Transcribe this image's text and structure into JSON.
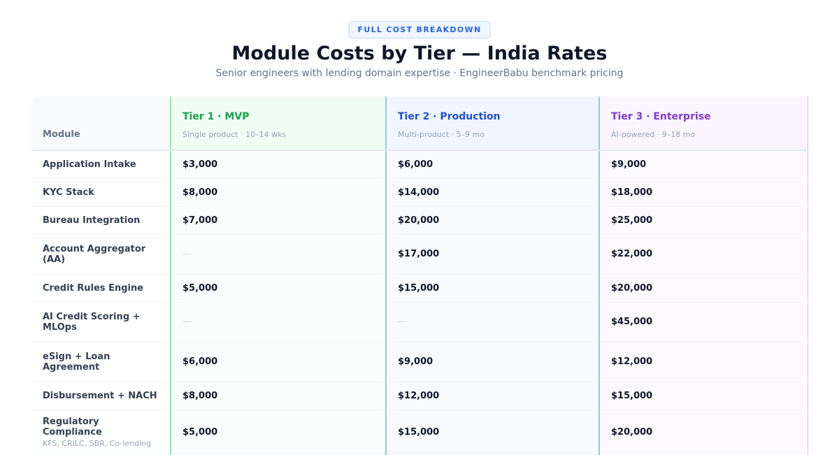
{
  "header": {
    "badge": "FULL COST BREAKDOWN",
    "title": "Module Costs by Tier — India Rates",
    "subtitle": "Senior engineers with lending domain expertise · EngineerBabu benchmark pricing"
  },
  "table": {
    "module_header": "Module",
    "tiers": [
      {
        "name": "Tier 1 · MVP",
        "sub": "Single product · 10–14 wks",
        "color": "#16a34a"
      },
      {
        "name": "Tier 2 · Production",
        "sub": "Multi-product · 5–9 mo",
        "color": "#1d4ed8"
      },
      {
        "name": "Tier 3 · Enterprise",
        "sub": "AI-powered · 9–18 mo",
        "color": "#7e3ad6"
      }
    ],
    "rows": [
      {
        "module": "Application Intake",
        "cells": [
          "$3,000",
          "$6,000",
          "$9,000"
        ]
      },
      {
        "module": "KYC Stack",
        "cells": [
          "$8,000",
          "$14,000",
          "$18,000"
        ]
      },
      {
        "module": "Bureau Integration",
        "cells": [
          "$7,000",
          "$20,000",
          "$25,000"
        ]
      },
      {
        "module": "Account Aggregator (AA)",
        "cells": [
          "—",
          "$17,000",
          "$22,000"
        ]
      },
      {
        "module": "Credit Rules Engine",
        "cells": [
          "$5,000",
          "$15,000",
          "$20,000"
        ]
      },
      {
        "module": "AI Credit Scoring + MLOps",
        "cells": [
          "—",
          "—",
          "$45,000"
        ]
      },
      {
        "module": "eSign + Loan Agreement",
        "cells": [
          "$6,000",
          "$9,000",
          "$12,000"
        ]
      },
      {
        "module": "Disbursement + NACH",
        "cells": [
          "$8,000",
          "$12,000",
          "$15,000"
        ]
      },
      {
        "module": "Regulatory Compliance",
        "note": "KFS, CRILC, SBR, Co-lending",
        "cells": [
          "$5,000",
          "$15,000",
          "$20,000"
        ]
      }
    ]
  }
}
